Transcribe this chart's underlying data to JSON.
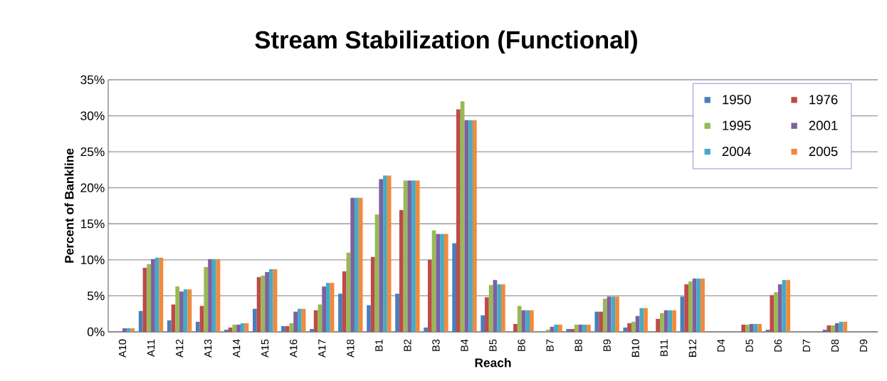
{
  "chart_data": {
    "type": "bar",
    "title": "Stream Stabilization (Functional)",
    "xlabel": "Reach",
    "ylabel": "Percent of Bankline",
    "categories": [
      "A10",
      "A11",
      "A12",
      "A13",
      "A14",
      "A15",
      "A16",
      "A17",
      "A18",
      "B1",
      "B2",
      "B3",
      "B4",
      "B5",
      "B6",
      "B7",
      "B8",
      "B9",
      "B10",
      "B11",
      "B12",
      "D4",
      "D5",
      "D6",
      "D7",
      "D8",
      "D9"
    ],
    "series": [
      {
        "name": "1950",
        "color": "#4a7ebb",
        "values": [
          0,
          2.9,
          1.6,
          1.4,
          0.3,
          3.2,
          0.8,
          0.4,
          5.3,
          3.7,
          5.3,
          0.6,
          12.3,
          2.3,
          0,
          0,
          0.4,
          2.8,
          0.6,
          0,
          4.9,
          0,
          0,
          0.3,
          0,
          0.3,
          0
        ]
      },
      {
        "name": "1976",
        "color": "#be4b48",
        "values": [
          0,
          8.9,
          3.8,
          3.6,
          0.6,
          7.6,
          0.8,
          3.0,
          8.4,
          10.4,
          16.9,
          10.0,
          30.9,
          4.8,
          1.1,
          0,
          0.4,
          2.8,
          1.2,
          1.8,
          6.6,
          0,
          1.0,
          5.1,
          0,
          0.9,
          0
        ]
      },
      {
        "name": "1995",
        "color": "#98b954",
        "values": [
          0,
          9.4,
          6.3,
          9.0,
          1.0,
          7.8,
          1.2,
          3.8,
          11.0,
          16.3,
          21.0,
          14.1,
          32.0,
          6.5,
          3.6,
          0.3,
          1.0,
          4.6,
          1.4,
          2.6,
          7.0,
          0,
          1.0,
          5.5,
          0,
          0.9,
          0
        ]
      },
      {
        "name": "2001",
        "color": "#7d60a0",
        "values": [
          0.5,
          10.1,
          5.6,
          10.1,
          1.0,
          8.3,
          2.8,
          6.3,
          18.6,
          21.2,
          21.0,
          13.6,
          29.4,
          7.2,
          3.0,
          0.7,
          1.0,
          4.9,
          2.2,
          3.0,
          7.4,
          0,
          1.1,
          6.6,
          0,
          1.2,
          0
        ]
      },
      {
        "name": "2004",
        "color": "#46aac5",
        "values": [
          0.5,
          10.3,
          5.9,
          10.1,
          1.2,
          8.7,
          3.2,
          6.8,
          18.6,
          21.7,
          21.0,
          13.6,
          29.4,
          6.6,
          3.0,
          1.0,
          1.0,
          4.9,
          3.3,
          3.0,
          7.4,
          0,
          1.1,
          7.2,
          0,
          1.4,
          0
        ]
      },
      {
        "name": "2005",
        "color": "#f08a3c",
        "values": [
          0.5,
          10.3,
          5.9,
          10.1,
          1.2,
          8.7,
          3.2,
          6.8,
          18.6,
          21.7,
          21.0,
          13.6,
          29.4,
          6.6,
          3.0,
          1.0,
          1.0,
          4.9,
          3.3,
          3.0,
          7.4,
          0,
          1.1,
          7.2,
          0,
          1.4,
          0
        ]
      }
    ],
    "ylim": [
      0,
      35
    ],
    "yticks": [
      {
        "value": 0,
        "label": "0%"
      },
      {
        "value": 5,
        "label": "5%"
      },
      {
        "value": 10,
        "label": "10%"
      },
      {
        "value": 15,
        "label": "15%"
      },
      {
        "value": 20,
        "label": "20%"
      },
      {
        "value": 25,
        "label": "25%"
      },
      {
        "value": 30,
        "label": "30%"
      },
      {
        "value": 35,
        "label": "35%"
      }
    ],
    "grid": "y",
    "legend": "top right"
  }
}
